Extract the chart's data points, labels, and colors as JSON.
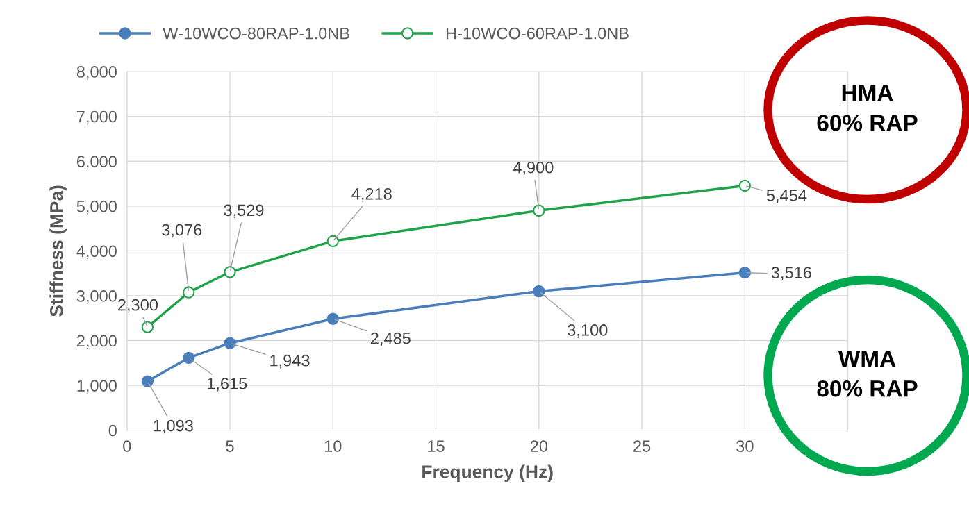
{
  "chart_data": {
    "type": "line",
    "xlabel": "Frequency (Hz)",
    "ylabel": "Stiffness (MPa)",
    "x": [
      1,
      3,
      5,
      10,
      20,
      30
    ],
    "series": [
      {
        "name": "W-10WCO-80RAP-1.0NB",
        "color": "#4a7ebb",
        "values": [
          1093,
          1615,
          1943,
          2485,
          3100,
          3516
        ],
        "value_labels": [
          "1,093",
          "1,615",
          "1,943",
          "2,485",
          "3,100",
          "3,516"
        ]
      },
      {
        "name": "H-10WCO-60RAP-1.0NB",
        "color": "#1fa34a",
        "values": [
          2300,
          3076,
          3529,
          4218,
          4900,
          5454
        ],
        "value_labels": [
          "2,300",
          "3,076",
          "3,529",
          "4,218",
          "4,900",
          "5,454"
        ]
      }
    ],
    "xlim": [
      0,
      35
    ],
    "xticks": [
      0,
      5,
      10,
      15,
      20,
      25,
      30
    ],
    "ylim": [
      0,
      8000
    ],
    "yticks": [
      {
        "value": 0,
        "label": "0"
      },
      {
        "value": 1000,
        "label": "1,000"
      },
      {
        "value": 2000,
        "label": "2,000"
      },
      {
        "value": 3000,
        "label": "3,000"
      },
      {
        "value": 4000,
        "label": "4,000"
      },
      {
        "value": 5000,
        "label": "5,000"
      },
      {
        "value": 6000,
        "label": "6,000"
      },
      {
        "value": 7000,
        "label": "7,000"
      },
      {
        "value": 8000,
        "label": "8,000"
      }
    ],
    "grid": true,
    "legend": "top",
    "marker": "circle",
    "line_style": "solid",
    "annotations": [
      "HMA\n60% RAP",
      "WMA\n80% RAP"
    ]
  }
}
